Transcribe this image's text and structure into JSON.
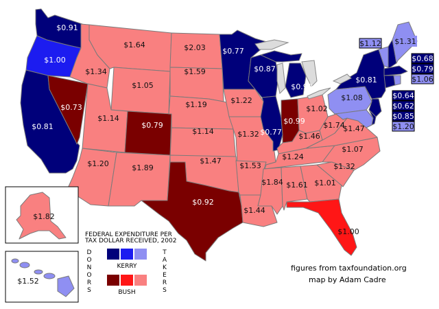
{
  "colors": {
    "kerry_donor": "#00007a",
    "kerry_mid": "#1c1cf0",
    "kerry_taker": "#8f8ff2",
    "bush_donor": "#7a0000",
    "bush_mid": "#ff1616",
    "bush_taker": "#f98080",
    "lakes": "#dcdcdc",
    "border": "#7a7a7a"
  },
  "legend": {
    "title_line1": "FEDERAL EXPENDITURE PER",
    "title_line2": "TAX DOLLAR RECEIVED, 2002",
    "donors_word": [
      "D",
      "O",
      "N",
      "O",
      "R",
      "S"
    ],
    "takers_word": [
      "T",
      "A",
      "K",
      "E",
      "R",
      "S"
    ],
    "kerry_label": "KERRY",
    "bush_label": "BUSH"
  },
  "credits": {
    "source": "figures from taxfoundation.org",
    "author": "map by Adam Cadre"
  },
  "states": {
    "WA": "$0.91",
    "OR": "$1.00",
    "CA": "$0.81",
    "NV": "$0.73",
    "ID": "$1.34",
    "MT": "$1.64",
    "WY": "$1.05",
    "UT": "$1.14",
    "AZ": "$1.20",
    "CO": "$0.79",
    "NM": "$1.89",
    "ND": "$2.03",
    "SD": "$1.59",
    "NE": "$1.19",
    "KS": "$1.14",
    "OK": "$1.47",
    "TX": "$0.92",
    "MN": "$0.77",
    "IA": "$1.22",
    "MO": "$1.32",
    "AR": "$1.53",
    "LA": "$1.44",
    "WI": "$0.87",
    "IL": "$0.77",
    "MI": "$0.90",
    "IN": "$0.99",
    "OH": "$1.02",
    "KY": "$1.46",
    "TN": "$1.24",
    "MS": "$1.84",
    "AL": "$1.61",
    "GA": "$1.01",
    "FL": "$1.00",
    "WV": "$1.74",
    "VA": "$1.47",
    "NC": "$1.07",
    "SC": "$1.32",
    "PA": "$1.08",
    "NY": "$0.81",
    "AK": "$1.82",
    "HI": "$1.52"
  },
  "callouts": {
    "VT": "$1.12",
    "ME": "$1.31",
    "NH": "$0.68",
    "MA": "$0.79",
    "RI": "$1.06",
    "CT": "$0.64",
    "NJ": "$0.62",
    "DE": "$0.85",
    "MD": "$1.20"
  }
}
